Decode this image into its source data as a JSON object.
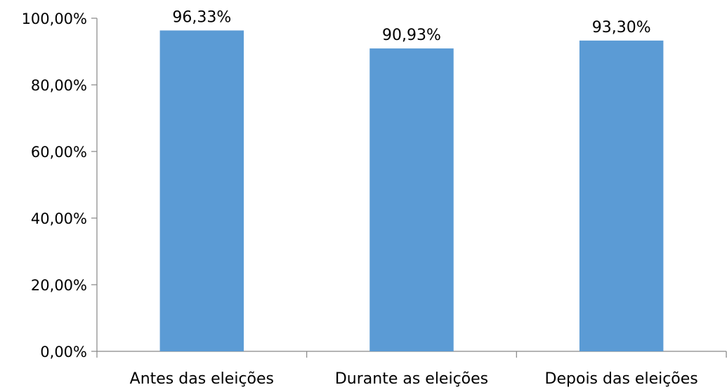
{
  "chart_data": {
    "type": "bar",
    "categories": [
      "Antes das eleições",
      "Durante as eleições",
      "Depois das eleições"
    ],
    "values": [
      96.33,
      90.93,
      93.3
    ],
    "data_labels": [
      "96,33%",
      "90,93%",
      "93,30%"
    ],
    "ylim": [
      0,
      100
    ],
    "y_ticks": [
      0,
      20,
      40,
      60,
      80,
      100
    ],
    "y_tick_labels": [
      "0,00%",
      "20,00%",
      "40,00%",
      "60,00%",
      "80,00%",
      "100,00%"
    ],
    "title": "",
    "xlabel": "",
    "ylabel": "",
    "grid": false,
    "legend": "none",
    "bar_color": "#5b9bd5",
    "axis_color": "#868686"
  }
}
